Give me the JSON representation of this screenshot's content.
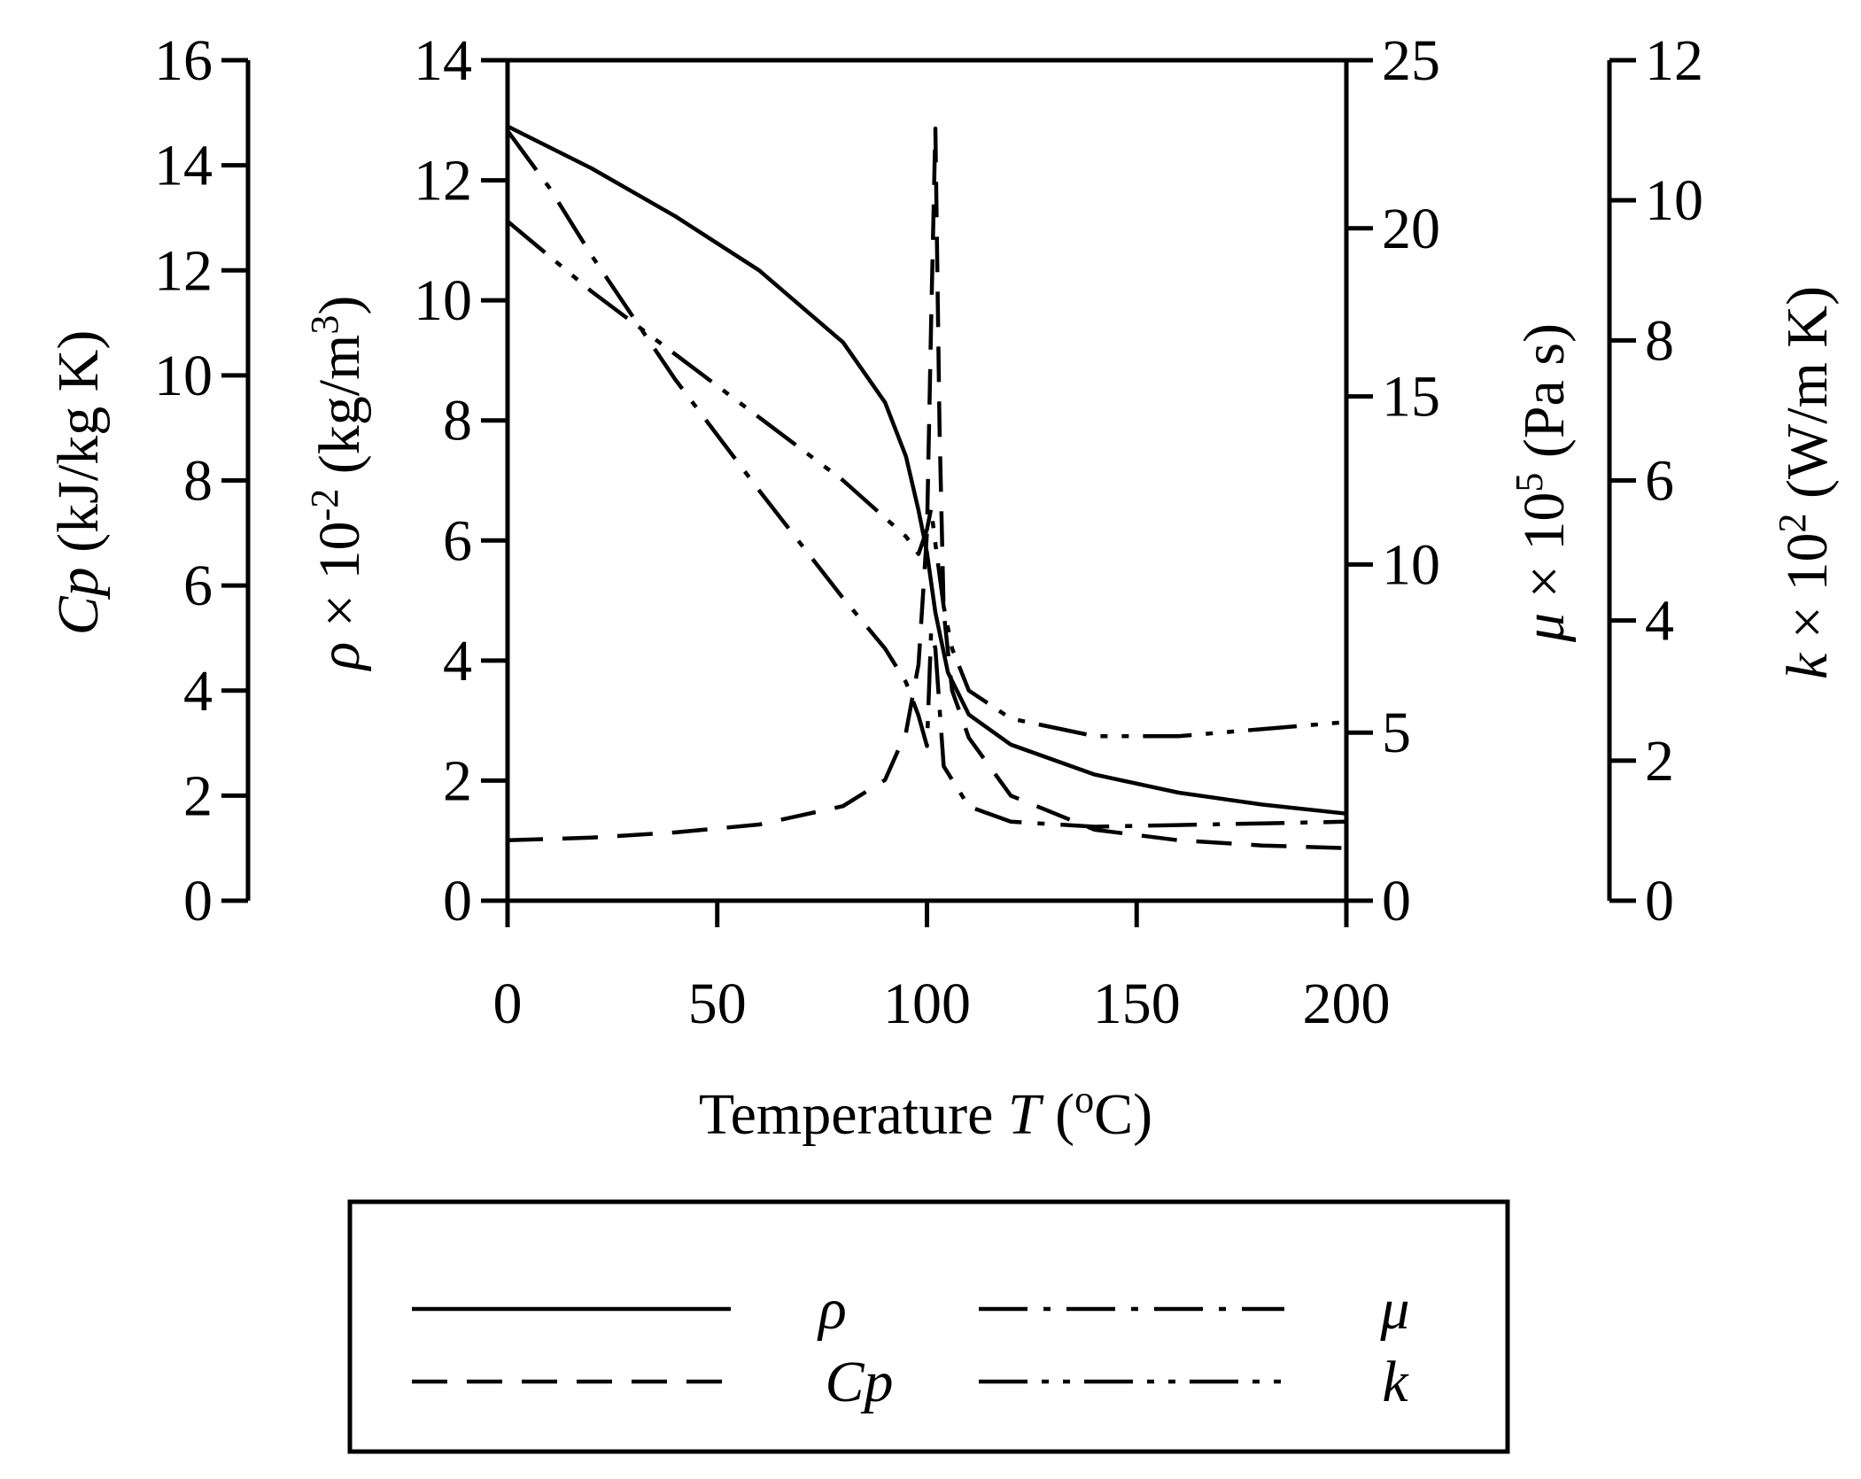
{
  "chart_data": {
    "type": "line",
    "xlabel_parts": {
      "before": "Temperature ",
      "var": "T",
      "open": " (",
      "sup": "o",
      "after": "C)"
    },
    "xlim": [
      0,
      200
    ],
    "xticks": [
      0,
      50,
      100,
      150,
      200
    ],
    "axes": {
      "cp": {
        "label_var": "Cp",
        "label_rest": " (kJ/kg K)",
        "ylim": [
          0,
          16
        ],
        "ticks": [
          0,
          2,
          4,
          6,
          8,
          10,
          12,
          14,
          16
        ]
      },
      "rho": {
        "label_var": "ρ",
        "label_times": " × 10",
        "label_exp": "-2",
        "label_unit": " (kg/m",
        "label_unit_exp": "3",
        "label_close": ")",
        "ylim": [
          0,
          14
        ],
        "ticks": [
          0,
          2,
          4,
          6,
          8,
          10,
          12,
          14
        ]
      },
      "mu": {
        "label_var": "μ",
        "label_times": " × 10",
        "label_exp": "5",
        "label_unit": " (Pa s)",
        "ylim": [
          0,
          25
        ],
        "ticks": [
          0,
          5,
          10,
          15,
          20,
          25
        ]
      },
      "k": {
        "label_var": "k",
        "label_times": " × 10",
        "label_exp": "2",
        "label_unit": " (W/m K)",
        "ylim": [
          0,
          12
        ],
        "ticks": [
          0,
          2,
          4,
          6,
          8,
          10,
          12
        ]
      }
    },
    "series": [
      {
        "name": "ρ",
        "axis": "rho",
        "dash": "solid",
        "x": [
          0,
          20,
          40,
          60,
          80,
          90,
          95,
          98,
          100,
          102,
          105,
          110,
          120,
          140,
          160,
          180,
          200
        ],
        "y": [
          12.9,
          12.2,
          11.4,
          10.5,
          9.3,
          8.3,
          7.4,
          6.5,
          5.8,
          4.8,
          3.8,
          3.1,
          2.6,
          2.1,
          1.8,
          1.6,
          1.45
        ]
      },
      {
        "name": "Cp",
        "axis": "cp",
        "dash": "dashed",
        "x": [
          0,
          20,
          40,
          60,
          80,
          90,
          95,
          98,
          100,
          101,
          102,
          103,
          104,
          106,
          110,
          120,
          140,
          160,
          180,
          200
        ],
        "y": [
          1.15,
          1.2,
          1.3,
          1.45,
          1.8,
          2.3,
          3.2,
          4.5,
          7.0,
          11.0,
          14.7,
          9.0,
          5.5,
          4.0,
          3.1,
          2.0,
          1.35,
          1.15,
          1.05,
          1.0
        ]
      },
      {
        "name": "μ",
        "axis": "mu",
        "dash": "dashdot",
        "x": [
          0,
          10,
          20,
          40,
          60,
          80,
          90,
          95,
          98,
          100,
          101,
          102,
          104,
          110,
          120,
          140,
          160,
          180,
          200
        ],
        "y": [
          22.9,
          21.2,
          19.2,
          15.5,
          12.2,
          9.0,
          7.5,
          6.5,
          5.5,
          4.6,
          8.0,
          7.5,
          4.0,
          2.8,
          2.35,
          2.2,
          2.25,
          2.3,
          2.35
        ]
      },
      {
        "name": "k",
        "axis": "k",
        "dash": "dashdotdot",
        "x": [
          0,
          10,
          20,
          40,
          60,
          80,
          95,
          98,
          100,
          101,
          102,
          104,
          106,
          110,
          120,
          140,
          160,
          180,
          200
        ],
        "y": [
          9.7,
          9.2,
          8.7,
          7.8,
          6.9,
          6.0,
          5.2,
          4.95,
          5.3,
          5.6,
          5.1,
          4.2,
          3.6,
          3.0,
          2.6,
          2.35,
          2.35,
          2.45,
          2.55
        ]
      }
    ],
    "legend": [
      {
        "series": "ρ",
        "label": "ρ"
      },
      {
        "series": "μ",
        "label": "μ"
      },
      {
        "series": "Cp",
        "label": "Cp"
      },
      {
        "series": "k",
        "label": "k"
      }
    ],
    "legend_placement": "bottom",
    "grid": false
  }
}
